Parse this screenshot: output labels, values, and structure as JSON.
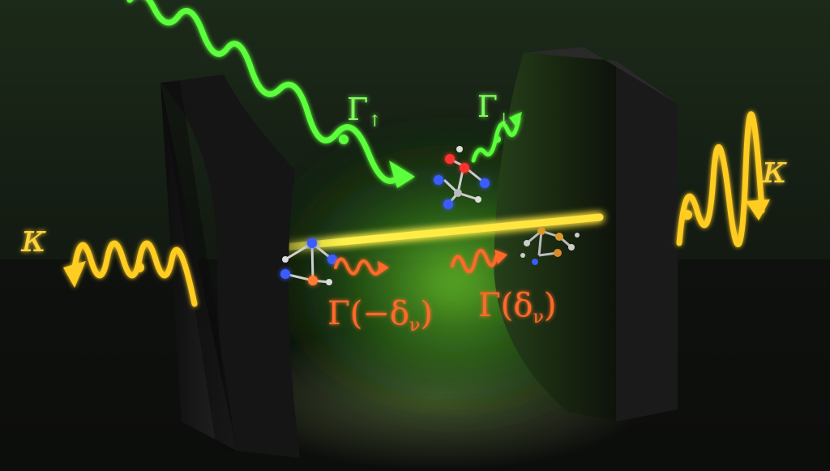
{
  "labels": {
    "gamma_up_main": "Γ",
    "gamma_up_sub": "↑",
    "gamma_down_main": "Γ",
    "gamma_down_sub": "↓",
    "kappa_left": "κ",
    "kappa_right": "κ",
    "gamma_minus": "Γ(−δ",
    "gamma_minus_sub": "ν",
    "gamma_minus_close": ")",
    "gamma_plus": "Γ(δ",
    "gamma_plus_sub": "ν",
    "gamma_plus_close": ")"
  },
  "colors": {
    "pump": "#5cff3a",
    "cavity_loss": "#ffcc22",
    "vibrational": "#ff6a2a",
    "cavity_mode": "#fff14a",
    "mirror": "#1e1e1e",
    "background": "#0f140f"
  }
}
